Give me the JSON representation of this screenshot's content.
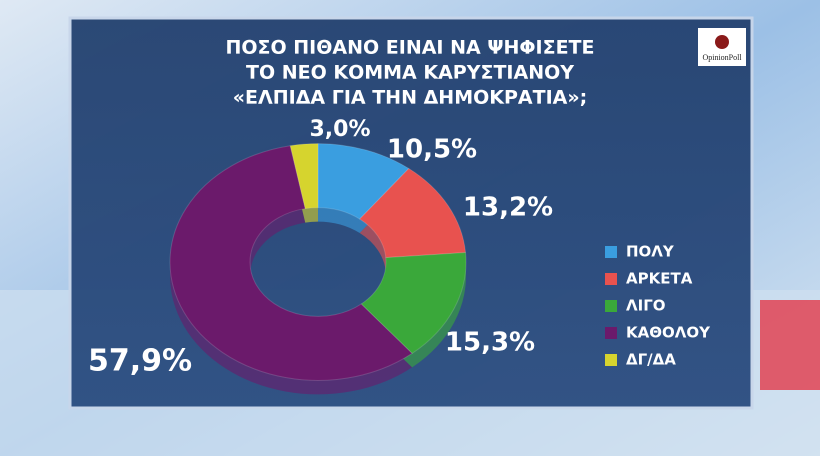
{
  "chart_data": {
    "type": "donut",
    "title_lines": [
      "ΠΟΣΟ ΠΙΘΑΝΟ ΕΙΝΑΙ ΝΑ ΨΗΦΙΣΕΤΕ",
      "ΤΟ ΝΕΟ ΚΟΜΜΑ ΚΑΡΥΣΤΙΑΝΟΥ",
      "«ΕΛΠΙΔΑ ΓΙΑ ΤΗΝ ΔΗΜΟΚΡΑΤΙΑ»;"
    ],
    "logo": "OpinionPoll",
    "categories": [
      "ΠΟΛΥ",
      "ΑΡΚΕΤΑ",
      "ΛΙΓΟ",
      "ΚΑΘΟΛΟΥ",
      "ΔΓ/ΔΑ"
    ],
    "values": [
      10.5,
      13.2,
      15.3,
      57.9,
      3.0
    ],
    "value_labels": [
      "10,5%",
      "13,2%",
      "15,3%",
      "57,9%",
      "3,0%"
    ],
    "colors": [
      "#3a9ee0",
      "#e8524f",
      "#3aa83a",
      "#6b1a6b",
      "#d6d42e"
    ],
    "legend": true
  }
}
